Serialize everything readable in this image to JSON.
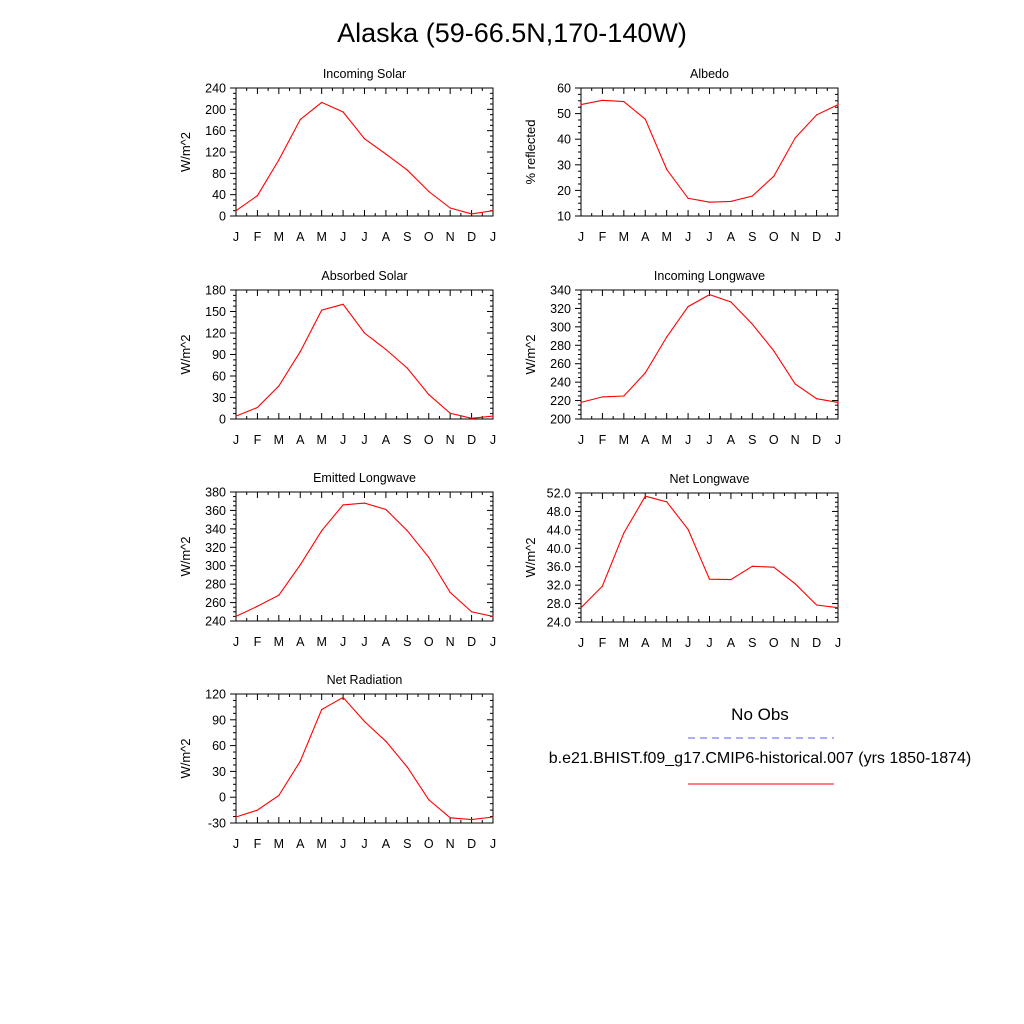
{
  "title": "Alaska (59-66.5N,170-140W)",
  "legend": {
    "obs_label": "No Obs",
    "obs_color": "#5a5aff",
    "model_label": "b.e21.BHIST.f09_g17.CMIP6-historical.007 (yrs 1850-1874)",
    "model_color": "#ff0000"
  },
  "chart_data": [
    {
      "type": "line",
      "title": "Incoming Solar",
      "ylabel": "W/m^2",
      "categories": [
        "J",
        "F",
        "M",
        "A",
        "M",
        "J",
        "J",
        "A",
        "S",
        "O",
        "N",
        "D",
        "J"
      ],
      "ylim": [
        0,
        240
      ],
      "yticks": [
        "0",
        "40",
        "80",
        "120",
        "160",
        "200",
        "240"
      ],
      "series": [
        {
          "values": [
            10,
            38,
            105,
            181,
            213,
            195,
            145,
            116,
            86,
            46,
            15,
            4,
            10
          ]
        }
      ]
    },
    {
      "type": "line",
      "title": "Albedo",
      "ylabel": "% reflected",
      "categories": [
        "J",
        "F",
        "M",
        "A",
        "M",
        "J",
        "J",
        "A",
        "S",
        "O",
        "N",
        "D",
        "J"
      ],
      "ylim": [
        10,
        60
      ],
      "yticks": [
        "10",
        "20",
        "30",
        "40",
        "50",
        "60"
      ],
      "series": [
        {
          "values": [
            53.5,
            55.2,
            54.7,
            47.8,
            28.2,
            16.9,
            15.4,
            15.7,
            17.8,
            25.5,
            40.5,
            49.5,
            53.5
          ]
        }
      ]
    },
    {
      "type": "line",
      "title": "Absorbed Solar",
      "ylabel": "W/m^2",
      "categories": [
        "J",
        "F",
        "M",
        "A",
        "M",
        "J",
        "J",
        "A",
        "S",
        "O",
        "N",
        "D",
        "J"
      ],
      "ylim": [
        0,
        180
      ],
      "yticks": [
        "0",
        "30",
        "60",
        "90",
        "120",
        "150",
        "180"
      ],
      "series": [
        {
          "values": [
            4,
            16,
            46,
            94,
            152,
            160,
            120,
            97,
            71,
            34,
            8,
            1,
            4
          ]
        }
      ]
    },
    {
      "type": "line",
      "title": "Incoming Longwave",
      "ylabel": "W/m^2",
      "categories": [
        "J",
        "F",
        "M",
        "A",
        "M",
        "J",
        "J",
        "A",
        "S",
        "O",
        "N",
        "D",
        "J"
      ],
      "ylim": [
        200,
        340
      ],
      "yticks": [
        "200",
        "220",
        "240",
        "260",
        "280",
        "300",
        "320",
        "340"
      ],
      "series": [
        {
          "values": [
            218,
            224,
            225,
            250,
            289,
            322,
            335,
            327,
            303,
            274,
            238,
            222,
            218
          ]
        }
      ]
    },
    {
      "type": "line",
      "title": "Emitted Longwave",
      "ylabel": "W/m^2",
      "categories": [
        "J",
        "F",
        "M",
        "A",
        "M",
        "J",
        "J",
        "A",
        "S",
        "O",
        "N",
        "D",
        "J"
      ],
      "ylim": [
        240,
        380
      ],
      "yticks": [
        "240",
        "260",
        "280",
        "300",
        "320",
        "340",
        "360",
        "380"
      ],
      "series": [
        {
          "values": [
            245,
            256,
            268,
            301,
            338,
            366,
            368,
            361,
            338,
            309,
            271,
            250,
            245
          ]
        }
      ]
    },
    {
      "type": "line",
      "title": "Net Longwave",
      "ylabel": "W/m^2",
      "categories": [
        "J",
        "F",
        "M",
        "A",
        "M",
        "J",
        "J",
        "A",
        "S",
        "O",
        "N",
        "D",
        "J"
      ],
      "ylim": [
        24,
        52
      ],
      "yticks": [
        "24.0",
        "28.0",
        "32.0",
        "36.0",
        "40.0",
        "44.0",
        "48.0",
        "52.0"
      ],
      "series": [
        {
          "values": [
            27.1,
            31.8,
            43.3,
            51.3,
            50.1,
            44.1,
            33.3,
            33.2,
            36.1,
            35.9,
            32.3,
            27.7,
            27.1
          ]
        }
      ]
    },
    {
      "type": "line",
      "title": "Net Radiation",
      "ylabel": "W/m^2",
      "categories": [
        "J",
        "F",
        "M",
        "A",
        "M",
        "J",
        "J",
        "A",
        "S",
        "O",
        "N",
        "D",
        "J"
      ],
      "ylim": [
        -30,
        120
      ],
      "yticks": [
        "-30",
        "0",
        "30",
        "60",
        "90",
        "120"
      ],
      "series": [
        {
          "values": [
            -23,
            -15,
            2,
            42,
            102,
            116,
            88,
            65,
            35,
            -3,
            -24,
            -26,
            -23
          ]
        }
      ]
    }
  ]
}
